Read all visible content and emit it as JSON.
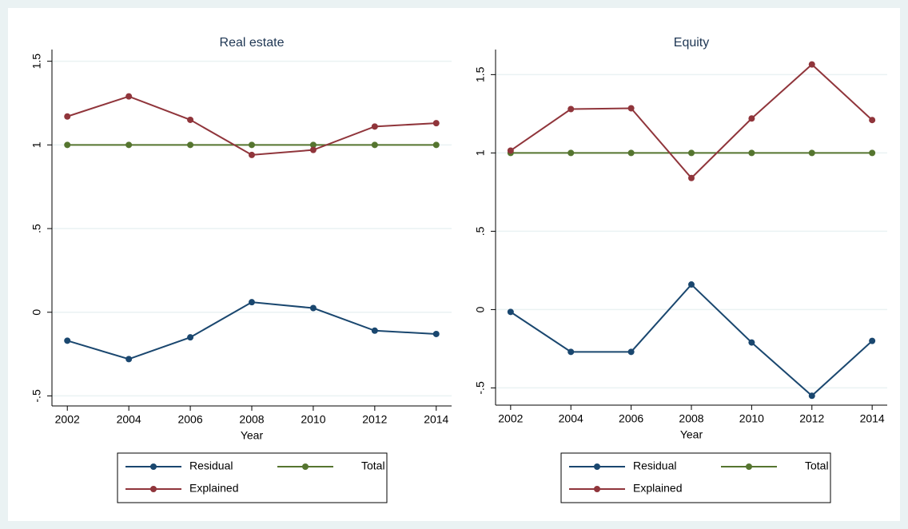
{
  "chart_data": [
    {
      "type": "line",
      "title": "Real estate",
      "x_label": "Year",
      "x": [
        2002,
        2004,
        2006,
        2008,
        2010,
        2012,
        2014
      ],
      "series": [
        {
          "name": "Residual",
          "color": "#1a476f",
          "values": [
            -0.17,
            -0.28,
            -0.15,
            0.06,
            0.025,
            -0.11,
            -0.13
          ]
        },
        {
          "name": "Total",
          "color": "#55752f",
          "values": [
            1,
            1,
            1,
            1,
            1,
            1,
            1
          ]
        },
        {
          "name": "Explained",
          "color": "#90353b",
          "values": [
            1.17,
            1.29,
            1.15,
            0.94,
            0.97,
            1.11,
            1.13
          ]
        }
      ],
      "xlim": [
        2001.5,
        2014.5
      ],
      "xticks": [
        2002,
        2004,
        2006,
        2008,
        2010,
        2012,
        2014
      ],
      "ylim": [
        -0.56,
        1.57
      ],
      "yticks": [
        {
          "value": -0.5,
          "label": "-.5"
        },
        0,
        {
          "value": 0.5,
          "label": ".5"
        },
        1,
        1.5
      ],
      "grid": true,
      "legend": "bottom"
    },
    {
      "type": "line",
      "title": "Equity",
      "x_label": "Year",
      "x": [
        2002,
        2004,
        2006,
        2008,
        2010,
        2012,
        2014
      ],
      "series": [
        {
          "name": "Residual",
          "color": "#1a476f",
          "values": [
            -0.015,
            -0.27,
            -0.27,
            0.16,
            -0.21,
            -0.55,
            -0.2
          ]
        },
        {
          "name": "Total",
          "color": "#55752f",
          "values": [
            1,
            1,
            1,
            1,
            1,
            1,
            1
          ]
        },
        {
          "name": "Explained",
          "color": "#90353b",
          "values": [
            1.015,
            1.28,
            1.285,
            0.84,
            1.22,
            1.565,
            1.21
          ]
        }
      ],
      "xlim": [
        2001.5,
        2014.5
      ],
      "xticks": [
        2002,
        2004,
        2006,
        2008,
        2010,
        2012,
        2014
      ],
      "ylim": [
        -0.61,
        1.66
      ],
      "yticks": [
        {
          "value": -0.5,
          "label": "-.5"
        },
        0,
        {
          "value": 0.5,
          "label": ".5"
        },
        1,
        1.5
      ],
      "grid": true,
      "legend": "bottom"
    }
  ]
}
